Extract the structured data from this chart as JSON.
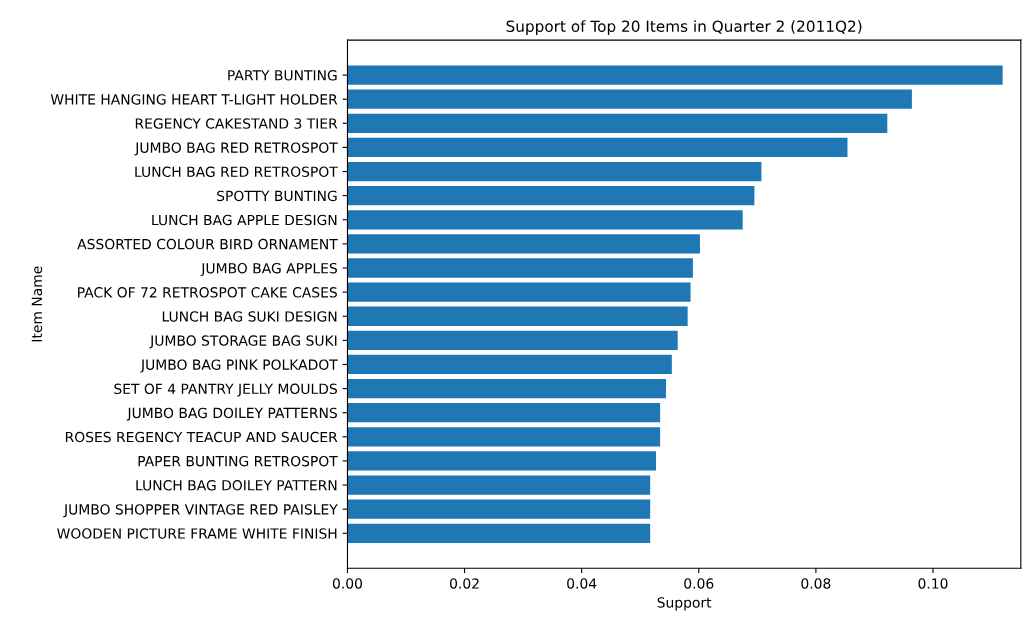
{
  "chart_data": {
    "type": "bar",
    "orientation": "horizontal",
    "title": "Support of Top 20 Items in Quarter 2 (2011Q2)",
    "xlabel": "Support",
    "ylabel": "Item Name",
    "categories": [
      "PARTY BUNTING",
      "WHITE HANGING HEART T-LIGHT HOLDER",
      "REGENCY CAKESTAND 3 TIER",
      "JUMBO BAG RED RETROSPOT",
      "LUNCH BAG RED RETROSPOT",
      "SPOTTY BUNTING",
      "LUNCH BAG APPLE DESIGN",
      "ASSORTED COLOUR BIRD ORNAMENT",
      "JUMBO BAG APPLES",
      "PACK OF 72 RETROSPOT CAKE CASES",
      "LUNCH BAG SUKI DESIGN",
      "JUMBO STORAGE BAG SUKI",
      "JUMBO BAG PINK POLKADOT",
      "SET OF 4 PANTRY JELLY MOULDS",
      "JUMBO BAG DOILEY PATTERNS",
      "ROSES REGENCY TEACUP AND SAUCER",
      "PAPER BUNTING RETROSPOT",
      "LUNCH BAG DOILEY PATTERN",
      "JUMBO SHOPPER VINTAGE RED PAISLEY",
      "WOODEN PICTURE FRAME WHITE FINISH"
    ],
    "values": [
      0.1119,
      0.0964,
      0.0922,
      0.0854,
      0.0707,
      0.0695,
      0.0675,
      0.0602,
      0.059,
      0.0586,
      0.0581,
      0.0564,
      0.0554,
      0.0544,
      0.0534,
      0.0534,
      0.0527,
      0.0517,
      0.0517,
      0.0517
    ],
    "color": "#1f77b4",
    "xlim": [
      0,
      0.115
    ],
    "xticks": [
      {
        "value": 0,
        "label": "0.00"
      },
      {
        "value": 0.02,
        "label": "0.02"
      },
      {
        "value": 0.04,
        "label": "0.04"
      },
      {
        "value": 0.06,
        "label": "0.06"
      },
      {
        "value": 0.08,
        "label": "0.08"
      },
      {
        "value": 0.1,
        "label": "0.10"
      }
    ],
    "grid": false,
    "legend": false
  }
}
